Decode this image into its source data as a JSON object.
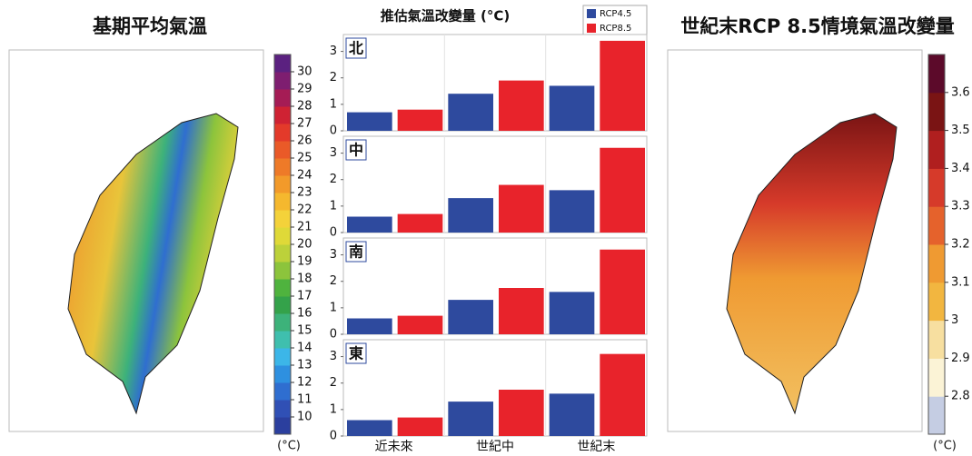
{
  "left_map": {
    "title": "基期平均氣溫",
    "unit": "(°C)",
    "lim": [
      9,
      31
    ],
    "ticks": [
      10,
      11,
      12,
      13,
      14,
      15,
      16,
      17,
      18,
      19,
      20,
      21,
      22,
      23,
      24,
      25,
      26,
      27,
      28,
      29,
      30
    ],
    "colors": [
      "#2b3f9e",
      "#3050b5",
      "#2f6ed0",
      "#2e90e0",
      "#3cb6e8",
      "#3fbfae",
      "#3db27a",
      "#34a24a",
      "#4fb33e",
      "#8cc43c",
      "#bcd13a",
      "#dfd938",
      "#f4d23a",
      "#f5b82e",
      "#f29a2a",
      "#ee7a28",
      "#ea5a28",
      "#e33a2a",
      "#cf2233",
      "#a51c55",
      "#7e1e70",
      "#5b2180"
    ]
  },
  "right_map": {
    "title": "世紀末RCP 8.5情境氣溫改變量",
    "unit": "(°C)",
    "lim": [
      2.7,
      3.7
    ],
    "ticks": [
      2.8,
      2.9,
      3,
      3.1,
      3.2,
      3.3,
      3.4,
      3.5,
      3.6
    ],
    "colors": [
      "#c5cde3",
      "#fbf3d6",
      "#f7dfa0",
      "#f2b640",
      "#ef9a32",
      "#e5622c",
      "#d63a2a",
      "#b01f1f",
      "#7a1414",
      "#5c0a2a"
    ]
  },
  "chart_data": {
    "type": "bar",
    "title": "推估氣溫改變量 (°C)",
    "categories": [
      "近未來",
      "世紀中",
      "世紀末"
    ],
    "series": [
      {
        "name": "RCP4.5",
        "color": "#2e4a9e"
      },
      {
        "name": "RCP8.5",
        "color": "#e8232b"
      }
    ],
    "ylim": [
      0,
      3.5
    ],
    "yticks": [
      0,
      1,
      2,
      3
    ],
    "panels": [
      {
        "label": "北",
        "series": [
          {
            "values": [
              0.7,
              1.4,
              1.7
            ]
          },
          {
            "values": [
              0.8,
              1.9,
              3.4
            ]
          }
        ]
      },
      {
        "label": "中",
        "series": [
          {
            "values": [
              0.6,
              1.3,
              1.6
            ]
          },
          {
            "values": [
              0.7,
              1.8,
              3.2
            ]
          }
        ]
      },
      {
        "label": "南",
        "series": [
          {
            "values": [
              0.6,
              1.3,
              1.6
            ]
          },
          {
            "values": [
              0.7,
              1.75,
              3.2
            ]
          }
        ]
      },
      {
        "label": "東",
        "series": [
          {
            "values": [
              0.6,
              1.3,
              1.6
            ]
          },
          {
            "values": [
              0.7,
              1.75,
              3.1
            ]
          }
        ]
      }
    ]
  }
}
